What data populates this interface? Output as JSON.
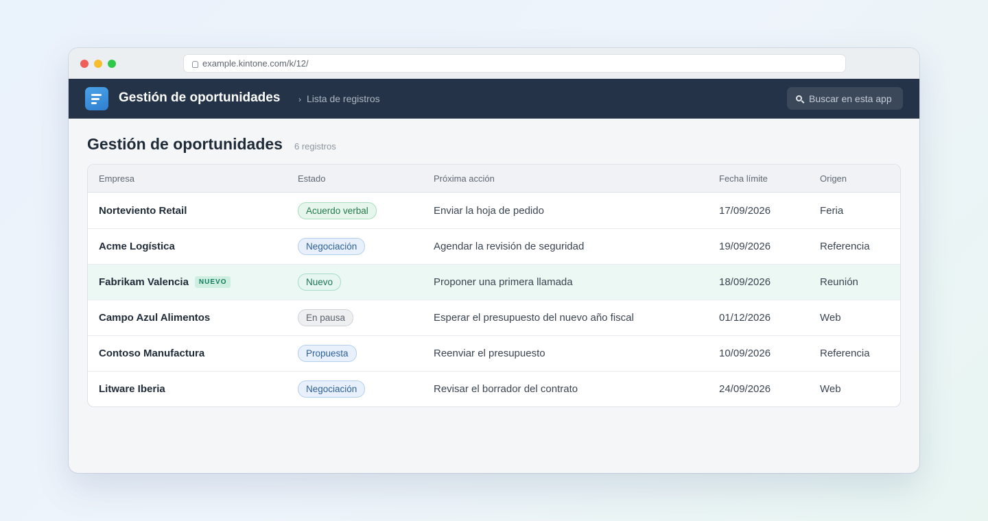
{
  "browser": {
    "url": "example.kintone.com/k/12/"
  },
  "appbar": {
    "title": "Gestión de oportunidades",
    "breadcrumb_sep": "›",
    "breadcrumb": "Lista de registros",
    "search_label": "Buscar en esta app"
  },
  "page": {
    "title": "Gestión de oportunidades",
    "count": "6 registros"
  },
  "table": {
    "columns": [
      "Empresa",
      "Estado",
      "Próxima acción",
      "Fecha límite",
      "Origen"
    ],
    "rows": [
      {
        "company": "Norteviento Retail",
        "tag": "",
        "status": "Acuerdo verbal",
        "status_color": "green",
        "action": "Enviar la hoja de pedido",
        "date": "17/09/2026",
        "origin": "Feria"
      },
      {
        "company": "Acme Logística",
        "tag": "",
        "status": "Negociación",
        "status_color": "blue",
        "action": "Agendar la revisión de seguridad",
        "date": "19/09/2026",
        "origin": "Referencia"
      },
      {
        "company": "Fabrikam Valencia",
        "tag": "NUEVO",
        "status": "Nuevo",
        "status_color": "teal",
        "action": "Proponer una primera llamada",
        "date": "18/09/2026",
        "origin": "Reunión"
      },
      {
        "company": "Campo Azul Alimentos",
        "tag": "",
        "status": "En pausa",
        "status_color": "gray",
        "action": "Esperar el presupuesto del nuevo año fiscal",
        "date": "01/12/2026",
        "origin": "Web"
      },
      {
        "company": "Contoso Manufactura",
        "tag": "",
        "status": "Propuesta",
        "status_color": "blue",
        "action": "Reenviar el presupuesto",
        "date": "10/09/2026",
        "origin": "Referencia"
      },
      {
        "company": "Litware Iberia",
        "tag": "",
        "status": "Negociación",
        "status_color": "blue",
        "action": "Revisar el borrador del contrato",
        "date": "24/09/2026",
        "origin": "Web"
      }
    ]
  },
  "icons": {
    "url": "lock-icon",
    "app": "list-app-icon",
    "search": "search-icon"
  },
  "colors": {
    "appbar_bg": "#243347",
    "highlight_row": "#ecf8f3",
    "accent": "#2f7fd0"
  }
}
